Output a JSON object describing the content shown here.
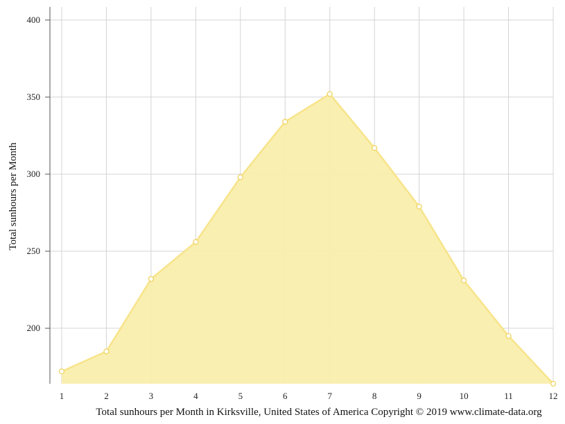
{
  "chart_data": {
    "type": "area",
    "x": [
      1,
      2,
      3,
      4,
      5,
      6,
      7,
      8,
      9,
      10,
      11,
      12
    ],
    "values": [
      172,
      185,
      232,
      256,
      298,
      334,
      352,
      317,
      279,
      231,
      195,
      164
    ],
    "ylabel": "Total sunhours per Month",
    "caption": "Total sunhours per Month in Kirksville, United States of America Copyright © 2019 www.climate-data.org",
    "y_ticks": [
      200,
      250,
      300,
      350,
      400
    ],
    "ylim": [
      164,
      404
    ],
    "xlim": [
      1,
      12
    ],
    "grid": true,
    "colors": {
      "fill": "#f9eeac",
      "line": "#f7e48a",
      "marker_fill": "#ffffff",
      "marker_stroke": "#f0d460",
      "grid": "#d4d4d4",
      "axis": "#555555"
    }
  }
}
